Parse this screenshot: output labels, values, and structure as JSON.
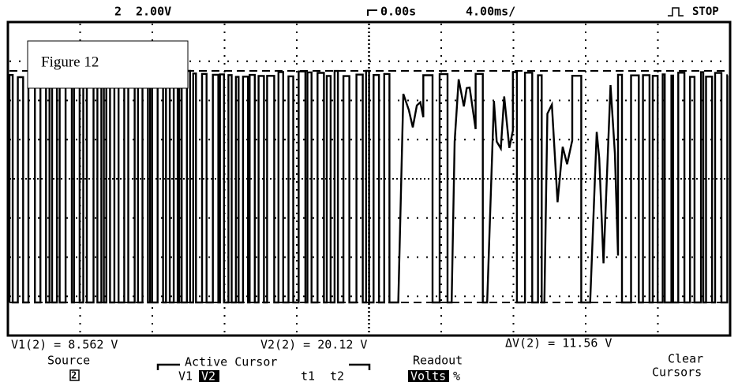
{
  "header": {
    "channel": "2",
    "scale": "2.00V",
    "delay": "0.00s",
    "timebase": "4.00ms/",
    "status": "STOP"
  },
  "figure_label": "Figure 12",
  "readouts": {
    "v1": "V1(2) = 8.562 V",
    "v2": "V2(2) = 20.12 V",
    "delta": "ΔV(2) = 11.56 V"
  },
  "menu": {
    "source": {
      "title": "Source",
      "value": "2"
    },
    "active_cursor": {
      "title": "Active Cursor",
      "options": [
        "V1",
        "V2",
        "t1",
        "t2"
      ]
    },
    "readout": {
      "title": "Readout",
      "options": [
        "Volts",
        "%"
      ]
    },
    "clear": {
      "line1": "Clear",
      "line2": "Cursors"
    }
  }
}
